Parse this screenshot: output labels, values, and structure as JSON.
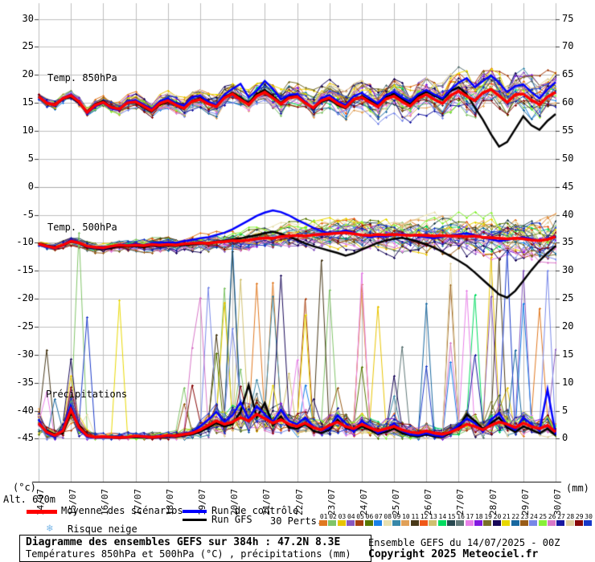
{
  "axes": {
    "left_unit": "(°c)",
    "right_unit": "(mm)",
    "alt_label": "Alt. 670m",
    "left_ticks": [
      "30",
      "25",
      "20",
      "15",
      "10",
      "5",
      "0",
      "-5",
      "-10",
      "-15",
      "-20",
      "-25",
      "-30",
      "-35",
      "-40",
      "-45"
    ],
    "left_tick_values": [
      30,
      25,
      20,
      15,
      10,
      5,
      0,
      -5,
      -10,
      -15,
      -20,
      -25,
      -30,
      -35,
      -40,
      -45
    ],
    "right_ticks": [
      "75",
      "70",
      "65",
      "60",
      "55",
      "50",
      "45",
      "40",
      "35",
      "30",
      "25",
      "20",
      "15",
      "10",
      "5",
      "0"
    ],
    "dates": [
      "14/07",
      "15/07",
      "16/07",
      "17/07",
      "18/07",
      "19/07",
      "20/07",
      "21/07",
      "22/07",
      "23/07",
      "24/07",
      "25/07",
      "26/07",
      "27/07",
      "28/07",
      "29/07",
      "30/07"
    ]
  },
  "panels": {
    "t850": "Temp. 850hPa",
    "t500": "Temp. 500hPa",
    "precip": "Précipitations"
  },
  "legend": {
    "mean": {
      "label": "Moyenne des scénarios",
      "color": "#ff0000"
    },
    "control": {
      "label": "Run de contrôle",
      "color": "#0000ff"
    },
    "gfs": {
      "label": "Run GFS",
      "color": "#000000"
    },
    "perts_label": "30 Perts.",
    "snow_label": "Risque neige",
    "snow_color": "#7cb8e8",
    "pert_numbers": [
      "01",
      "02",
      "03",
      "04",
      "05",
      "06",
      "07",
      "08",
      "09",
      "10",
      "11",
      "12",
      "13",
      "14",
      "15",
      "16",
      "17",
      "18",
      "19",
      "20",
      "21",
      "22",
      "23",
      "24",
      "25",
      "26",
      "27",
      "28",
      "29",
      "30"
    ],
    "pert_colors": [
      "#e07820",
      "#80c468",
      "#e8c400",
      "#8858c0",
      "#a84010",
      "#587800",
      "#1880e8",
      "#e8e0b0",
      "#3888a8",
      "#e0a058",
      "#483818",
      "#f05818",
      "#d0c070",
      "#00dc60",
      "#284850",
      "#607878",
      "#e880e8",
      "#8018e0",
      "#787028",
      "#180858",
      "#e8d800",
      "#1868a0",
      "#985c18",
      "#7888e8",
      "#88f038",
      "#d878c8",
      "#1818a0",
      "#e0d0a0",
      "#880808",
      "#1838c8"
    ]
  },
  "footer": {
    "title": "Diagramme des ensembles GEFS sur 384h : 47.2N 8.3E",
    "subtitle": "Températures 850hPa et 500hPa (°C) , précipitations (mm)",
    "run_info": "Ensemble GEFS du 14/07/2025 - 00Z",
    "copyright": "Copyright 2025 Meteociel.fr"
  },
  "chart_data": {
    "type": "line",
    "title": "Diagramme des ensembles GEFS sur 384h : 47.2N 8.3E",
    "x_hours_range": [
      0,
      384
    ],
    "x_hours_step": 6,
    "x_dates": [
      "14/07",
      "15/07",
      "16/07",
      "17/07",
      "18/07",
      "19/07",
      "20/07",
      "21/07",
      "22/07",
      "23/07",
      "24/07",
      "25/07",
      "26/07",
      "27/07",
      "28/07",
      "29/07",
      "30/07"
    ],
    "ylim_left_celsius": [
      -45,
      30
    ],
    "ylim_right_mm": [
      0,
      75
    ],
    "grid": true,
    "series": {
      "t850": {
        "mean": [
          16.1,
          15.0,
          14.6,
          15.8,
          16.3,
          15.2,
          13.3,
          14.6,
          15.1,
          14.2,
          13.9,
          15.0,
          15.2,
          14.4,
          13.6,
          14.9,
          15.4,
          14.6,
          14.0,
          15.3,
          15.6,
          14.8,
          14.3,
          15.9,
          16.6,
          15.6,
          14.7,
          16.2,
          16.9,
          15.9,
          14.8,
          15.9,
          16.1,
          15.0,
          14.1,
          15.4,
          15.9,
          14.9,
          14.2,
          15.6,
          16.0,
          15.1,
          14.3,
          15.7,
          16.2,
          15.2,
          14.4,
          15.8,
          16.5,
          15.6,
          14.9,
          16.3,
          17.1,
          16.2,
          15.4,
          16.8,
          17.4,
          16.3,
          15.1,
          16.5,
          16.6,
          15.5,
          14.7,
          16.1,
          16.9
        ],
        "control": [
          16.0,
          15.2,
          14.4,
          15.9,
          16.5,
          15.3,
          13.1,
          14.4,
          15.0,
          14.0,
          13.7,
          15.2,
          15.5,
          14.7,
          13.9,
          15.3,
          15.8,
          14.9,
          14.5,
          16.0,
          16.3,
          15.2,
          14.6,
          16.5,
          17.5,
          18.4,
          16.0,
          17.2,
          18.9,
          17.5,
          15.6,
          16.4,
          16.6,
          15.2,
          14.0,
          15.8,
          16.4,
          15.3,
          14.6,
          16.2,
          16.8,
          15.8,
          14.9,
          16.4,
          17.0,
          16.0,
          15.2,
          16.6,
          17.3,
          16.5,
          15.8,
          17.4,
          18.6,
          19.4,
          17.8,
          18.9,
          19.9,
          18.6,
          16.9,
          18.0,
          18.3,
          16.9,
          15.8,
          17.4,
          18.7
        ],
        "gfs": [
          16.2,
          15.1,
          14.5,
          15.7,
          16.1,
          15.0,
          13.5,
          14.8,
          15.3,
          14.3,
          13.8,
          15.1,
          15.0,
          14.2,
          13.4,
          14.7,
          15.2,
          14.5,
          13.9,
          15.4,
          15.8,
          15.0,
          14.4,
          16.0,
          16.8,
          15.9,
          14.9,
          16.6,
          17.3,
          16.2,
          15.0,
          16.1,
          16.3,
          15.1,
          13.9,
          15.2,
          15.7,
          14.6,
          14.0,
          15.5,
          16.2,
          15.4,
          14.6,
          16.0,
          16.6,
          15.7,
          14.8,
          16.2,
          17.0,
          16.3,
          15.6,
          17.1,
          17.8,
          16.5,
          14.2,
          12.0,
          9.4,
          7.2,
          8.0,
          10.3,
          12.6,
          11.0,
          10.2,
          11.8,
          13.0
        ]
      },
      "t500": {
        "mean": [
          -10.2,
          -10.6,
          -10.9,
          -10.4,
          -9.7,
          -10.0,
          -10.6,
          -10.8,
          -10.9,
          -10.6,
          -10.4,
          -10.5,
          -10.4,
          -10.5,
          -10.3,
          -10.4,
          -10.3,
          -10.4,
          -10.2,
          -10.1,
          -10.0,
          -10.1,
          -9.9,
          -9.8,
          -9.6,
          -9.7,
          -9.5,
          -9.3,
          -9.1,
          -9.2,
          -8.9,
          -8.8,
          -8.7,
          -8.8,
          -8.6,
          -8.5,
          -8.4,
          -8.3,
          -8.2,
          -8.4,
          -8.6,
          -8.7,
          -8.5,
          -8.6,
          -8.5,
          -8.6,
          -8.7,
          -8.6,
          -8.7,
          -8.8,
          -8.7,
          -8.8,
          -8.8,
          -8.9,
          -8.8,
          -9.0,
          -9.1,
          -9.2,
          -9.3,
          -9.2,
          -9.3,
          -9.5,
          -9.6,
          -9.4,
          -8.9
        ],
        "control": [
          -10.3,
          -10.7,
          -11.0,
          -10.3,
          -9.5,
          -9.9,
          -10.7,
          -10.9,
          -11.0,
          -10.7,
          -10.3,
          -10.4,
          -10.2,
          -10.4,
          -10.1,
          -10.0,
          -9.9,
          -10.0,
          -9.7,
          -9.5,
          -9.2,
          -9.0,
          -8.6,
          -8.2,
          -7.6,
          -6.8,
          -6.0,
          -5.2,
          -4.6,
          -4.2,
          -4.5,
          -5.1,
          -5.9,
          -6.6,
          -7.3,
          -7.9,
          -8.3,
          -8.1,
          -7.8,
          -8.2,
          -8.7,
          -9.0,
          -8.8,
          -8.9,
          -8.6,
          -8.4,
          -8.6,
          -8.8,
          -9.0,
          -9.2,
          -8.9,
          -8.7,
          -8.5,
          -8.3,
          -8.6,
          -9.0,
          -9.4,
          -9.7,
          -9.5,
          -9.2,
          -9.0,
          -9.3,
          -9.6,
          -9.3,
          -8.7
        ],
        "gfs": [
          -10.1,
          -10.5,
          -10.8,
          -10.5,
          -9.8,
          -10.1,
          -10.8,
          -11.0,
          -11.2,
          -10.9,
          -10.6,
          -10.7,
          -10.6,
          -10.8,
          -10.5,
          -10.6,
          -10.5,
          -10.6,
          -10.4,
          -10.3,
          -10.2,
          -10.0,
          -9.8,
          -9.6,
          -9.4,
          -9.2,
          -8.9,
          -8.6,
          -8.3,
          -8.0,
          -8.4,
          -8.9,
          -9.5,
          -10.1,
          -10.6,
          -11.0,
          -11.4,
          -11.8,
          -12.3,
          -11.9,
          -11.2,
          -10.6,
          -10.0,
          -9.6,
          -9.3,
          -9.1,
          -9.4,
          -9.8,
          -10.3,
          -10.9,
          -11.6,
          -12.4,
          -13.2,
          -14.1,
          -15.3,
          -16.6,
          -17.9,
          -19.2,
          -19.8,
          -18.6,
          -16.8,
          -14.9,
          -13.2,
          -11.8,
          -10.6
        ]
      },
      "precip_mm": {
        "mean": [
          2.8,
          1.2,
          0.6,
          1.4,
          5.2,
          2.0,
          0.6,
          0.3,
          0.4,
          0.3,
          0.2,
          0.3,
          0.5,
          0.4,
          0.3,
          0.4,
          0.6,
          0.5,
          0.8,
          1.0,
          1.6,
          2.4,
          3.2,
          2.6,
          3.0,
          3.8,
          3.2,
          4.4,
          3.6,
          2.8,
          3.4,
          2.6,
          2.2,
          2.8,
          2.0,
          1.6,
          2.4,
          3.0,
          2.2,
          1.8,
          2.6,
          2.0,
          1.4,
          1.8,
          2.2,
          1.6,
          1.2,
          1.0,
          1.4,
          1.0,
          0.8,
          1.2,
          1.8,
          2.6,
          2.2,
          1.6,
          2.4,
          3.0,
          2.6,
          2.0,
          2.8,
          2.2,
          1.8,
          2.4,
          1.2
        ],
        "control": [
          3.4,
          1.0,
          0.4,
          1.8,
          6.0,
          1.6,
          0.4,
          0.2,
          0.3,
          0.2,
          0.2,
          0.2,
          0.4,
          0.3,
          0.2,
          0.3,
          0.5,
          0.4,
          0.9,
          1.2,
          2.2,
          3.4,
          4.8,
          3.0,
          4.2,
          6.5,
          3.6,
          5.8,
          4.4,
          3.0,
          5.2,
          3.2,
          2.6,
          3.8,
          2.2,
          1.4,
          2.0,
          4.2,
          2.8,
          1.2,
          3.2,
          2.2,
          1.0,
          1.6,
          2.8,
          1.4,
          0.8,
          0.6,
          1.0,
          0.6,
          0.4,
          1.4,
          2.4,
          3.6,
          2.8,
          1.2,
          3.4,
          4.6,
          2.4,
          1.6,
          3.8,
          2.6,
          1.4,
          8.8,
          0.8
        ],
        "gfs": [
          2.6,
          1.4,
          0.8,
          1.0,
          4.6,
          2.4,
          0.8,
          0.2,
          0.2,
          0.2,
          0.1,
          0.2,
          0.3,
          0.2,
          0.2,
          0.3,
          0.4,
          0.3,
          0.6,
          0.8,
          1.2,
          2.0,
          2.8,
          2.2,
          2.6,
          4.8,
          9.6,
          3.8,
          6.4,
          2.4,
          4.0,
          2.0,
          1.8,
          2.6,
          1.4,
          1.0,
          1.6,
          3.4,
          2.0,
          1.4,
          2.2,
          1.6,
          0.8,
          1.2,
          1.8,
          1.0,
          0.6,
          0.4,
          0.8,
          0.4,
          0.3,
          1.0,
          2.0,
          4.4,
          3.2,
          1.8,
          2.8,
          3.8,
          2.0,
          1.2,
          2.2,
          1.6,
          1.0,
          1.8,
          0.6
        ]
      }
    },
    "members": {
      "count": 30,
      "synthesized": true,
      "seed": 12345,
      "spread_t850": [
        0.9,
        3.8
      ],
      "spread_t500": [
        0.7,
        3.6
      ],
      "precip_spike_max_mm": 38
    },
    "legend_position": "bottom"
  }
}
